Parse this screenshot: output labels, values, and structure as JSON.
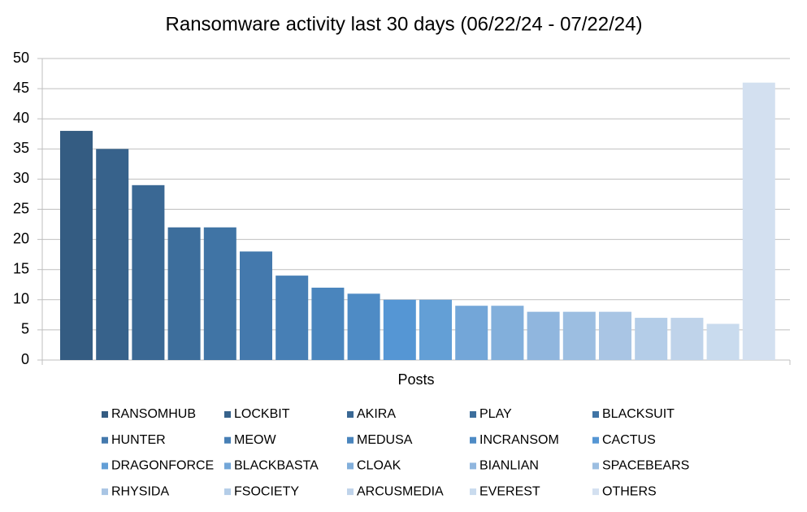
{
  "chart_data": {
    "type": "bar",
    "title": "Ransomware activity last 30 days (06/22/24 - 07/22/24)",
    "categories": [
      "Posts"
    ],
    "series": [
      {
        "name": "RANSOMHUB",
        "color": "#345c82",
        "values": [
          38
        ]
      },
      {
        "name": "LOCKBIT",
        "color": "#37628b",
        "values": [
          35
        ]
      },
      {
        "name": "AKIRA",
        "color": "#3a6894",
        "values": [
          29
        ]
      },
      {
        "name": "PLAY",
        "color": "#3d6e9c",
        "values": [
          22
        ]
      },
      {
        "name": "BLACKSUIT",
        "color": "#4074a5",
        "values": [
          22
        ]
      },
      {
        "name": "HUNTER",
        "color": "#4479ad",
        "values": [
          18
        ]
      },
      {
        "name": "MEOW",
        "color": "#477fb5",
        "values": [
          14
        ]
      },
      {
        "name": "MEDUSA",
        "color": "#4a85bd",
        "values": [
          12
        ]
      },
      {
        "name": "INCRANSOM",
        "color": "#4e8bc5",
        "values": [
          11
        ]
      },
      {
        "name": "CACTUS",
        "color": "#5596d4",
        "values": [
          10
        ]
      },
      {
        "name": "DRAGONFORCE",
        "color": "#639fd6",
        "values": [
          10
        ]
      },
      {
        "name": "BLACKBASTA",
        "color": "#73a6d8",
        "values": [
          9
        ]
      },
      {
        "name": "CLOAK",
        "color": "#82afdb",
        "values": [
          9
        ]
      },
      {
        "name": "BIANLIAN",
        "color": "#90b6de",
        "values": [
          8
        ]
      },
      {
        "name": "SPACEBEARS",
        "color": "#9cbee1",
        "values": [
          8
        ]
      },
      {
        "name": "RHYSIDA",
        "color": "#a9c5e4",
        "values": [
          8
        ]
      },
      {
        "name": "FSOCIETY",
        "color": "#b4cde8",
        "values": [
          7
        ]
      },
      {
        "name": "ARCUSMEDIA",
        "color": "#bfd3ea",
        "values": [
          7
        ]
      },
      {
        "name": "EVEREST",
        "color": "#c9dbee",
        "values": [
          6
        ]
      },
      {
        "name": "OTHERS",
        "color": "#d3e0f0",
        "values": [
          46
        ]
      }
    ],
    "ylim": [
      0,
      50
    ],
    "yticks": [
      0,
      5,
      10,
      15,
      20,
      25,
      30,
      35,
      40,
      45,
      50
    ],
    "grid": true
  }
}
